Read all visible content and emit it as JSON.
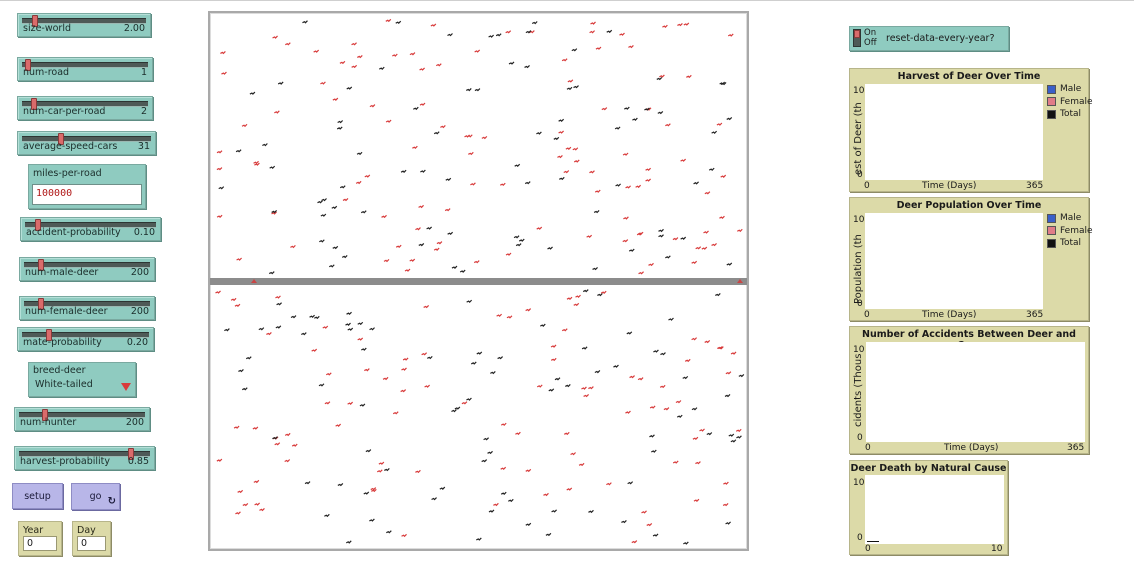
{
  "sliders": [
    {
      "id": "size-world",
      "label": "size-world",
      "value": "2.00",
      "pos": 0.12
    },
    {
      "id": "num-road",
      "label": "num-road",
      "value": "1",
      "pos": 0.02
    },
    {
      "id": "num-car-per-road",
      "label": "num-car-per-road",
      "value": "2",
      "pos": 0.07
    },
    {
      "id": "average-speed-cars",
      "label": "average-speed-cars",
      "value": "31",
      "pos": 0.3
    },
    {
      "id": "accident-probability",
      "label": "accident-probability",
      "value": "0.10",
      "pos": 0.08
    },
    {
      "id": "num-male-deer",
      "label": "num-male-deer",
      "value": "200",
      "pos": 0.1
    },
    {
      "id": "num-female-deer",
      "label": "num-female-deer",
      "value": "200",
      "pos": 0.1
    },
    {
      "id": "mate-probability",
      "label": "mate-probability",
      "value": "0.20",
      "pos": 0.2
    },
    {
      "id": "num-hunter",
      "label": "num-hunter",
      "value": "200",
      "pos": 0.2
    },
    {
      "id": "harvest-probability",
      "label": "harvest-probability",
      "value": "0.85",
      "pos": 0.85
    }
  ],
  "miles_input": {
    "label": "miles-per-road",
    "value": "100000"
  },
  "breed_chooser": {
    "label": "breed-deer",
    "value": "White-tailed"
  },
  "buttons": {
    "setup": "setup",
    "go": "go",
    "go_forever_icon": "↻"
  },
  "monitors": {
    "year": {
      "label": "Year",
      "value": "0"
    },
    "day": {
      "label": "Day",
      "value": "0"
    }
  },
  "switch": {
    "on": "On",
    "off": "Off",
    "label": "reset-data-every-year?"
  },
  "colors": {
    "male": "#3a5fc9",
    "female": "#e07c88",
    "total": "#111111",
    "road": "#8c8c8c",
    "deer_red": "#d83b3b",
    "deer_black": "#222222"
  },
  "plots": [
    {
      "id": "harvest",
      "title": "Harvest of Deer Over Time",
      "ylabel": "est of Deer (th",
      "xlabel": "Time (Days)",
      "xmin": "0",
      "xmax": "365",
      "ymin": "0",
      "ymax": "10",
      "legend": [
        "Male",
        "Female",
        "Total"
      ]
    },
    {
      "id": "population",
      "title": "Deer Population Over Time",
      "ylabel": "Population (th",
      "xlabel": "Time (Days)",
      "xmin": "0",
      "xmax": "365",
      "ymin": "0",
      "ymax": "10",
      "legend": [
        "Male",
        "Female",
        "Total"
      ]
    },
    {
      "id": "accidents",
      "title": "Number of Accidents Between Deer and Cars",
      "ylabel": "cidents (Thous",
      "xlabel": "Time (Days)",
      "xmin": "0",
      "xmax": "365",
      "ymin": "0",
      "ymax": "10",
      "legend": []
    },
    {
      "id": "natural",
      "title": "Deer Death by Natural Cause",
      "ylabel": "",
      "xlabel": "",
      "xmin": "0",
      "xmax": "10",
      "ymin": "0",
      "ymax": "10",
      "legend": []
    }
  ]
}
